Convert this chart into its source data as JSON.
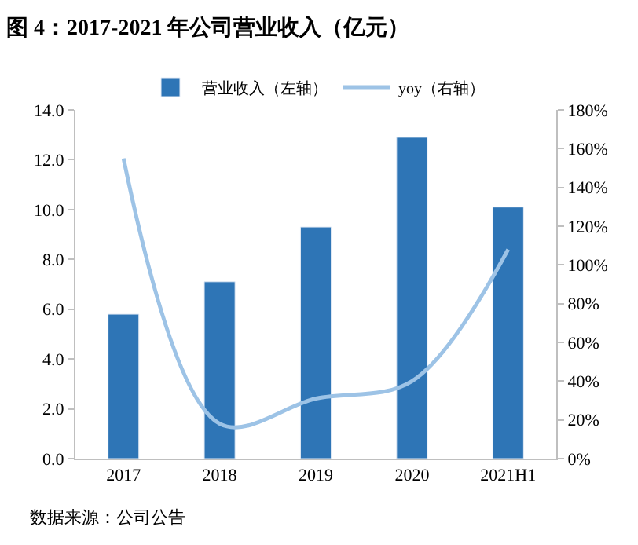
{
  "chart_data": {
    "type": "bar",
    "title": "图 4：2017-2021 年公司营业收入（亿元）",
    "categories": [
      "2017",
      "2018",
      "2019",
      "2020",
      "2021H1"
    ],
    "series": [
      {
        "name": "营业收入（左轴）",
        "color": "#2e75b6",
        "values": [
          5.8,
          7.1,
          9.3,
          12.9,
          10.1
        ]
      },
      {
        "name": "yoy（右轴）",
        "type": "line",
        "axis": "y2",
        "color": "#9dc3e6",
        "values": [
          155,
          18,
          31,
          40,
          108
        ]
      }
    ],
    "ylim": [
      0,
      14
    ],
    "yticks": [
      {
        "value": 0,
        "label": "0.0"
      },
      {
        "value": 2,
        "label": "2.0"
      },
      {
        "value": 4,
        "label": "4.0"
      },
      {
        "value": 6,
        "label": "6.0"
      },
      {
        "value": 8,
        "label": "8.0"
      },
      {
        "value": 10,
        "label": "10.0"
      },
      {
        "value": 12,
        "label": "12.0"
      },
      {
        "value": 14,
        "label": "14.0"
      }
    ],
    "y2lim": [
      0,
      180
    ],
    "y2ticks": [
      {
        "value": 0,
        "label": "0%"
      },
      {
        "value": 20,
        "label": "20%"
      },
      {
        "value": 40,
        "label": "40%"
      },
      {
        "value": 60,
        "label": "60%"
      },
      {
        "value": 80,
        "label": "80%"
      },
      {
        "value": 100,
        "label": "100%"
      },
      {
        "value": 120,
        "label": "120%"
      },
      {
        "value": 140,
        "label": "140%"
      },
      {
        "value": 160,
        "label": "160%"
      },
      {
        "value": 180,
        "label": "180%"
      }
    ],
    "legend": "top",
    "marker": "none",
    "line_style": "solid",
    "annotations": [
      "数据来源：公司公告"
    ]
  }
}
